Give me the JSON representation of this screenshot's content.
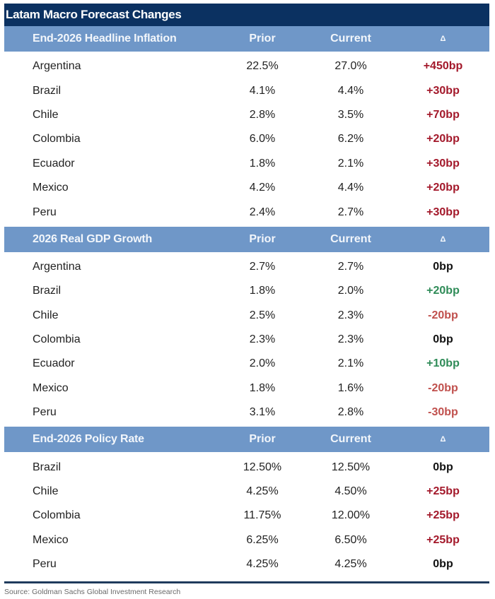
{
  "title": "Latam Macro Forecast Changes",
  "colors": {
    "title_bg": "#0b3161",
    "section_header_bg": "#6f97c8",
    "increase_inflation_rate": "#a3182a",
    "decrease": "#c0504d",
    "increase_growth": "#2e8b57",
    "zero": "#111111"
  },
  "sections": [
    {
      "header": {
        "name": "End-2026 Headline Inflation",
        "prior": "Prior",
        "current": "Current",
        "delta": "Δ"
      },
      "rows": [
        {
          "country": "Argentina",
          "prior": "22.5%",
          "current": "27.0%",
          "delta": "+450bp",
          "tone": "pos-red"
        },
        {
          "country": "Brazil",
          "prior": "4.1%",
          "current": "4.4%",
          "delta": "+30bp",
          "tone": "pos-red"
        },
        {
          "country": "Chile",
          "prior": "2.8%",
          "current": "3.5%",
          "delta": "+70bp",
          "tone": "pos-red"
        },
        {
          "country": "Colombia",
          "prior": "6.0%",
          "current": "6.2%",
          "delta": "+20bp",
          "tone": "pos-red"
        },
        {
          "country": "Ecuador",
          "prior": "1.8%",
          "current": "2.1%",
          "delta": "+30bp",
          "tone": "pos-red"
        },
        {
          "country": "Mexico",
          "prior": "4.2%",
          "current": "4.4%",
          "delta": "+20bp",
          "tone": "pos-red"
        },
        {
          "country": "Peru",
          "prior": "2.4%",
          "current": "2.7%",
          "delta": "+30bp",
          "tone": "pos-red"
        }
      ]
    },
    {
      "header": {
        "name": "2026 Real GDP Growth",
        "prior": "Prior",
        "current": "Current",
        "delta": "Δ"
      },
      "rows": [
        {
          "country": "Argentina",
          "prior": "2.7%",
          "current": "2.7%",
          "delta": "0bp",
          "tone": "zero"
        },
        {
          "country": "Brazil",
          "prior": "1.8%",
          "current": "2.0%",
          "delta": "+20bp",
          "tone": "pos-green"
        },
        {
          "country": "Chile",
          "prior": "2.5%",
          "current": "2.3%",
          "delta": "-20bp",
          "tone": "neg-red"
        },
        {
          "country": "Colombia",
          "prior": "2.3%",
          "current": "2.3%",
          "delta": "0bp",
          "tone": "zero"
        },
        {
          "country": "Ecuador",
          "prior": "2.0%",
          "current": "2.1%",
          "delta": "+10bp",
          "tone": "pos-green"
        },
        {
          "country": "Mexico",
          "prior": "1.8%",
          "current": "1.6%",
          "delta": "-20bp",
          "tone": "neg-red"
        },
        {
          "country": "Peru",
          "prior": "3.1%",
          "current": "2.8%",
          "delta": "-30bp",
          "tone": "neg-red"
        }
      ]
    },
    {
      "header": {
        "name": "End-2026 Policy Rate",
        "prior": "Prior",
        "current": "Current",
        "delta": "Δ"
      },
      "rows": [
        {
          "country": "Brazil",
          "prior": "12.50%",
          "current": "12.50%",
          "delta": "0bp",
          "tone": "zero"
        },
        {
          "country": "Chile",
          "prior": "4.25%",
          "current": "4.50%",
          "delta": "+25bp",
          "tone": "pos-red"
        },
        {
          "country": "Colombia",
          "prior": "11.75%",
          "current": "12.00%",
          "delta": "+25bp",
          "tone": "pos-red"
        },
        {
          "country": "Mexico",
          "prior": "6.25%",
          "current": "6.50%",
          "delta": "+25bp",
          "tone": "pos-red"
        },
        {
          "country": "Peru",
          "prior": "4.25%",
          "current": "4.25%",
          "delta": "0bp",
          "tone": "zero"
        }
      ]
    }
  ],
  "source": "Source: Goldman Sachs Global Investment Research"
}
